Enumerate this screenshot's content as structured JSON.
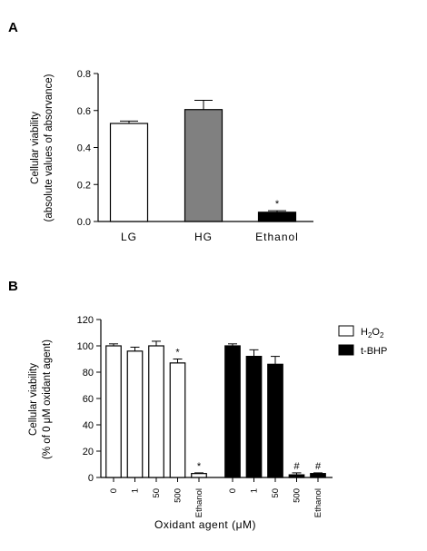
{
  "chart_data": [
    {
      "panel": "A",
      "type": "bar",
      "categories": [
        "LG",
        "HG",
        "Ethanol"
      ],
      "values": [
        0.53,
        0.605,
        0.05
      ],
      "errors": [
        0.013,
        0.05,
        0.008
      ],
      "bar_colors": [
        "#ffffff",
        "#808080",
        "#000000"
      ],
      "annotations": [
        "",
        "",
        "*"
      ],
      "ylabel_line1": "Cellular viability",
      "ylabel_line2": "(absolute values of absorvance)",
      "xlabel": "",
      "ylim": [
        0,
        0.8
      ],
      "yticks": [
        "0.0",
        "0.2",
        "0.4",
        "0.6",
        "0.8"
      ]
    },
    {
      "panel": "B",
      "type": "bar",
      "categories": [
        "0",
        "1",
        "50",
        "500",
        "Ethanol"
      ],
      "series": [
        {
          "name": "H2O2",
          "color": "#ffffff",
          "values": [
            100,
            96,
            100,
            87,
            3
          ],
          "errors": [
            1.5,
            3,
            3.5,
            3,
            0.5
          ],
          "annotations": [
            "",
            "",
            "",
            "*",
            "*"
          ]
        },
        {
          "name": "t-BHP",
          "color": "#000000",
          "values": [
            100,
            92,
            86,
            2,
            3
          ],
          "errors": [
            1.5,
            5,
            6,
            1.5,
            0.5
          ],
          "annotations": [
            "",
            "",
            "",
            "#",
            "#"
          ]
        }
      ],
      "legend": [
        {
          "base": "H",
          "sub1": "2",
          "mid": "O",
          "sub2": "2"
        },
        {
          "base": "t-BHP",
          "sub1": "",
          "mid": "",
          "sub2": ""
        }
      ],
      "legend_position": "top-right",
      "ylabel_line1": "Cellular viability",
      "ylabel_line2": "(% of 0 μM oxidant agent)",
      "xlabel": "Oxidant agent (μM)",
      "ylim": [
        0,
        120
      ],
      "yticks": [
        "0",
        "20",
        "40",
        "60",
        "80",
        "100",
        "120"
      ]
    }
  ]
}
